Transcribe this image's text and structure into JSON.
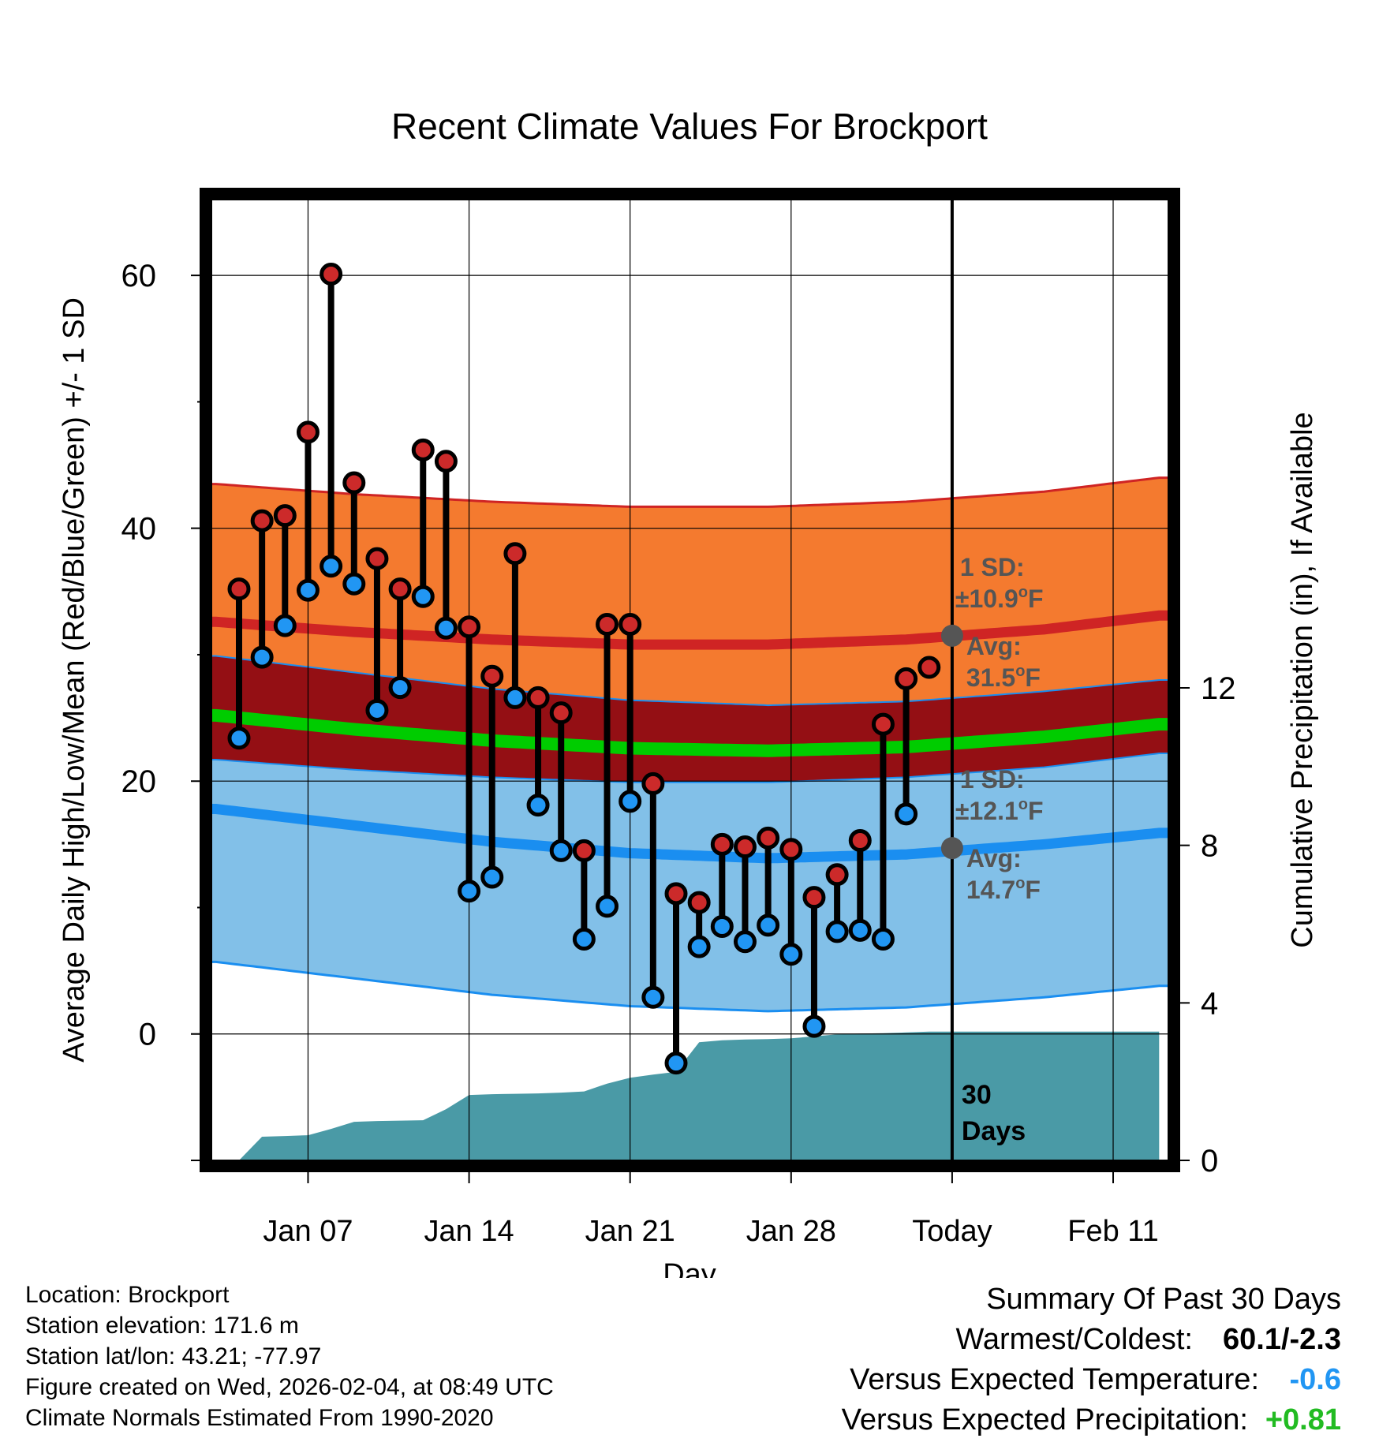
{
  "chart_data": {
    "type": "line",
    "title": "Recent Climate Values For Brockport",
    "xlabel": "Day",
    "ylabel": "Average Daily High/Low/Mean (Red/Blue/Green) +/- 1 SD",
    "y2label": "Cumulative Precipitation (in), If Available",
    "xlim_day_index": [
      -0.2,
      41.4
    ],
    "ylim": [
      -10,
      66
    ],
    "y2lim": [
      0,
      24.4
    ],
    "x_ticks": [
      {
        "day": 4,
        "label": "Jan 07"
      },
      {
        "day": 11,
        "label": "Jan 14"
      },
      {
        "day": 18,
        "label": "Jan 21"
      },
      {
        "day": 25,
        "label": "Jan 28"
      },
      {
        "day": 32,
        "label": "Today"
      },
      {
        "day": 39,
        "label": "Feb 11"
      }
    ],
    "y_ticks": [
      0,
      20,
      40,
      60
    ],
    "y_minor_ticks": [
      10,
      30,
      50
    ],
    "y2_ticks": [
      0,
      4,
      8,
      12
    ],
    "today_day": 32,
    "colors": {
      "high_band": "#f47a2f",
      "high_line": "#cf2424",
      "mean_band": "#940f14",
      "mean_line": "#00cc00",
      "low_band": "#82c0e8",
      "low_line": "#1a8ef0",
      "precip": "#4a9aa6",
      "high_marker": "#cc2a2a",
      "low_marker": "#2196f3",
      "avg_marker": "#555555",
      "annotation_text": "#555555",
      "temp_anomaly": "#2196f3",
      "precip_anomaly": "#22bb22"
    },
    "normals": {
      "days": [
        0,
        6,
        12,
        18,
        24,
        30,
        36,
        41
      ],
      "high_mean": [
        32.6,
        31.8,
        31.2,
        30.8,
        30.8,
        31.2,
        32.0,
        33.1
      ],
      "high_sd": 10.9,
      "low_mean": [
        17.8,
        16.5,
        15.2,
        14.3,
        13.9,
        14.2,
        15.0,
        15.9
      ],
      "low_sd": 12.1,
      "avg_mean": [
        25.2,
        24.1,
        23.2,
        22.6,
        22.4,
        22.7,
        23.5,
        24.5
      ]
    },
    "series": [
      {
        "name": "Daily High",
        "days": [
          1,
          2,
          3,
          4,
          5,
          6,
          7,
          8,
          9,
          10,
          11,
          12,
          13,
          14,
          15,
          16,
          17,
          18,
          19,
          20,
          21,
          22,
          23,
          24,
          25,
          26,
          27,
          28,
          29,
          30,
          31
        ],
        "values": [
          35.2,
          40.6,
          41.0,
          47.6,
          60.1,
          43.6,
          37.6,
          35.2,
          46.2,
          45.3,
          32.2,
          28.3,
          38.0,
          26.6,
          25.4,
          14.5,
          32.4,
          32.4,
          19.8,
          11.1,
          10.4,
          15.0,
          14.8,
          15.5,
          14.6,
          10.8,
          12.6,
          15.3,
          24.5,
          28.1,
          29.0
        ]
      },
      {
        "name": "Daily Low",
        "days": [
          1,
          2,
          3,
          4,
          5,
          6,
          7,
          8,
          9,
          10,
          11,
          12,
          13,
          14,
          15,
          16,
          17,
          18,
          19,
          20,
          21,
          22,
          23,
          24,
          25,
          26,
          27,
          28,
          29,
          30
        ],
        "values": [
          23.4,
          29.8,
          32.3,
          35.1,
          37.0,
          35.6,
          25.6,
          27.4,
          34.6,
          32.1,
          11.3,
          12.4,
          26.6,
          18.1,
          14.5,
          7.5,
          10.1,
          18.4,
          2.9,
          -2.3,
          6.9,
          8.5,
          7.3,
          8.6,
          6.3,
          0.6,
          8.1,
          8.2,
          7.5,
          17.4
        ]
      }
    ],
    "precip_cumulative": {
      "days": [
        0,
        1,
        2,
        3,
        4,
        5,
        6,
        7,
        8,
        9,
        10,
        11,
        12,
        13,
        14,
        15,
        16,
        17,
        18,
        19,
        20,
        21,
        22,
        23,
        24,
        25,
        26,
        27,
        28,
        29,
        30,
        31,
        32,
        41
      ],
      "values": [
        0.0,
        0.0,
        0.6,
        0.62,
        0.64,
        0.8,
        0.98,
        1.0,
        1.01,
        1.02,
        1.3,
        1.66,
        1.68,
        1.69,
        1.7,
        1.72,
        1.75,
        1.95,
        2.1,
        2.18,
        2.25,
        3.0,
        3.05,
        3.07,
        3.08,
        3.1,
        3.15,
        3.2,
        3.22,
        3.23,
        3.25,
        3.27,
        3.27,
        3.27
      ]
    },
    "annotations": {
      "high_sd_label": "1 SD:",
      "high_sd_value": "±10.9",
      "high_avg_label": "Avg:",
      "high_avg_value": "31.5",
      "low_sd_label": "1 SD:",
      "low_sd_value": "±12.1",
      "low_avg_label": "Avg:",
      "low_avg_value": "14.7",
      "degree_symbol": "o",
      "unit": "F",
      "days_count": "30",
      "days_word": "Days"
    }
  },
  "footer": {
    "location": "Location: Brockport",
    "elevation": "Station elevation: 171.6 m",
    "latlon": "Station lat/lon: 43.21; -77.97",
    "created": "Figure created on Wed, 2026-02-04, at 08:49 UTC",
    "normals": "Climate Normals Estimated From 1990-2020"
  },
  "summary": {
    "title": "Summary Of Past 30 Days",
    "warmest_label": "Warmest/Coldest:",
    "warmest_value": "60.1/-2.3",
    "temp_label": "Versus Expected Temperature:",
    "temp_value": "-0.6",
    "precip_label": "Versus Expected Precipitation:",
    "precip_value": "+0.81"
  }
}
